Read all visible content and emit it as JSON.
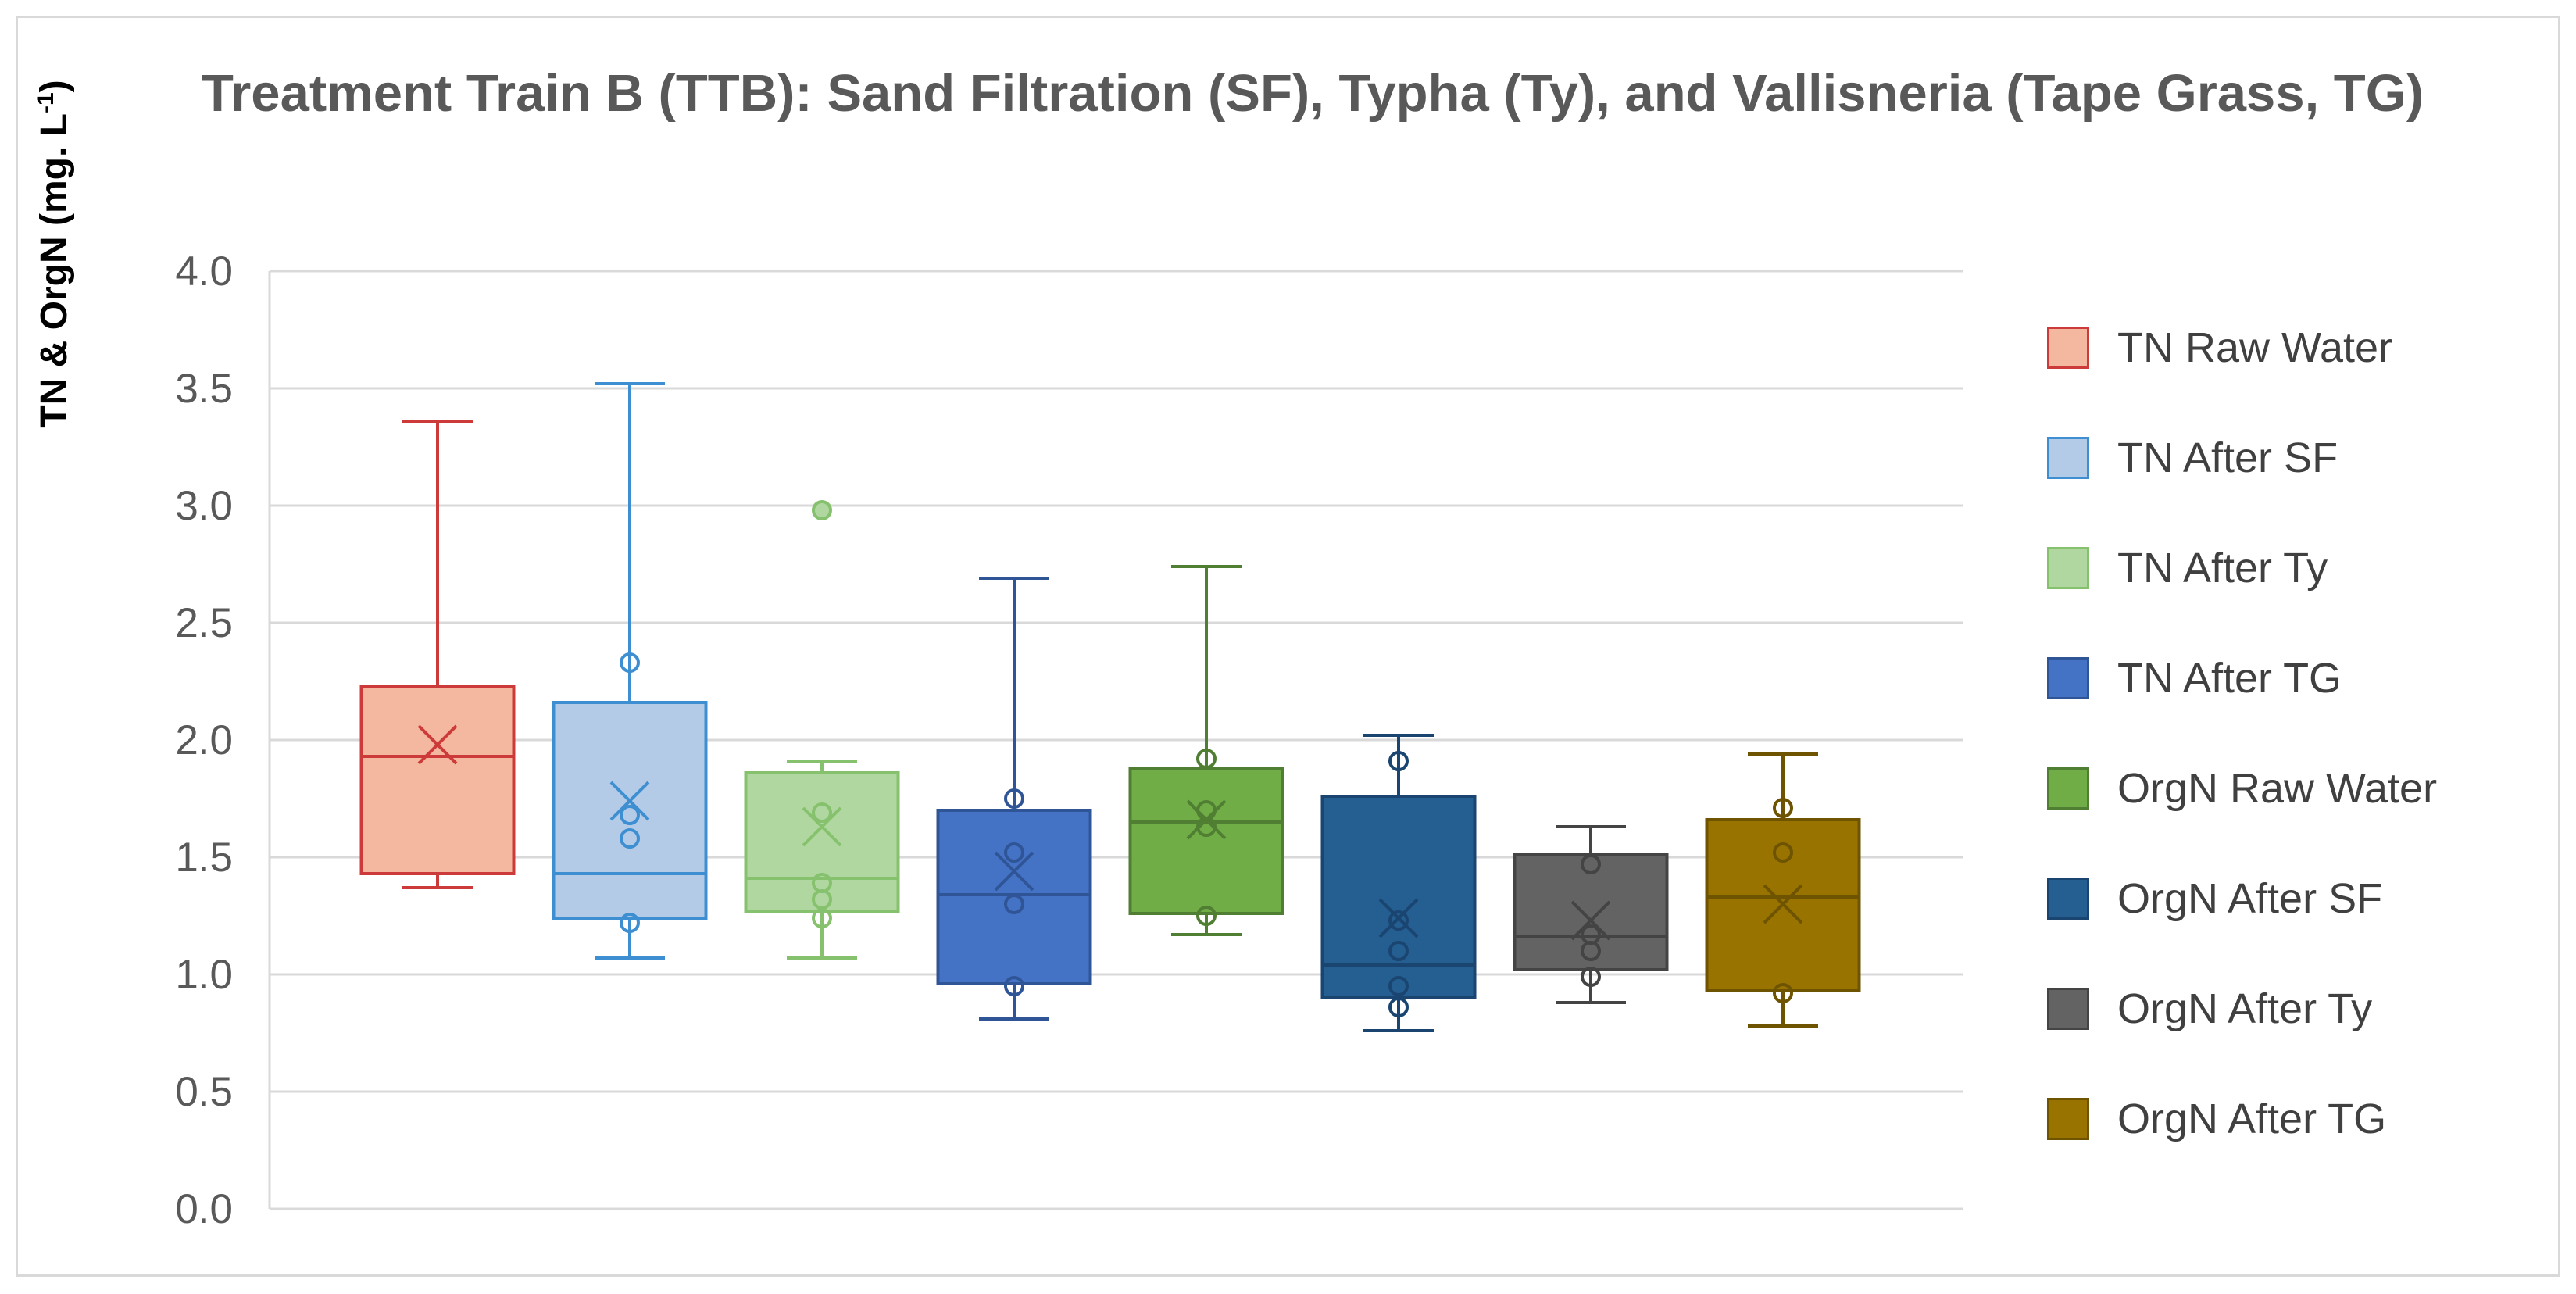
{
  "chart_data": {
    "type": "box",
    "title": "Treatment Train B (TTB): Sand Filtration (SF), Typha (Ty), and Vallisneria (Tape Grass, TG)",
    "xlabel": "",
    "ylabel": "TN & OrgN (mg. L",
    "ylabel_sup": "-1",
    "ylabel_end": ")",
    "ylim": [
      0,
      4.0
    ],
    "yticks": [
      "0.0",
      "0.5",
      "1.0",
      "1.5",
      "2.0",
      "2.5",
      "3.0",
      "3.5",
      "4.0"
    ],
    "grid": true,
    "legend_position": "right",
    "series": [
      {
        "name": "TN Raw Water",
        "fill": "#f4b79f",
        "stroke": "#cc3a3a",
        "min": 1.37,
        "q1": 1.43,
        "median": 1.93,
        "q3": 2.23,
        "max": 3.36,
        "mean": 1.98,
        "points": []
      },
      {
        "name": "TN After SF",
        "fill": "#b4cbe8",
        "stroke": "#3d8fd1",
        "min": 1.07,
        "q1": 1.24,
        "median": 1.43,
        "q3": 2.16,
        "max": 3.52,
        "mean": 1.74,
        "points": [
          2.33,
          1.68,
          1.58,
          1.22
        ]
      },
      {
        "name": "TN After Ty",
        "fill": "#b1d7a0",
        "stroke": "#86c16e",
        "min": 1.07,
        "q1": 1.27,
        "median": 1.41,
        "q3": 1.86,
        "max": 1.91,
        "mean": 1.63,
        "points": [
          2.98,
          1.69,
          1.39,
          1.32,
          1.24
        ]
      },
      {
        "name": "TN After TG",
        "fill": "#4472c4",
        "stroke": "#2f5597",
        "min": 0.81,
        "q1": 0.96,
        "median": 1.34,
        "q3": 1.7,
        "max": 2.69,
        "mean": 1.44,
        "points": [
          1.75,
          1.52,
          1.3,
          0.95
        ]
      },
      {
        "name": "OrgN Raw Water",
        "fill": "#70ad47",
        "stroke": "#507e32",
        "min": 1.17,
        "q1": 1.26,
        "median": 1.65,
        "q3": 1.88,
        "max": 2.74,
        "mean": 1.66,
        "points": [
          1.92,
          1.7,
          1.63,
          1.25
        ]
      },
      {
        "name": "OrgN After SF",
        "fill": "#255e91",
        "stroke": "#1b4571",
        "min": 0.76,
        "q1": 0.9,
        "median": 1.04,
        "q3": 1.76,
        "max": 2.02,
        "mean": 1.24,
        "points": [
          1.91,
          1.23,
          1.1,
          0.95,
          0.86
        ]
      },
      {
        "name": "OrgN After Ty",
        "fill": "#636363",
        "stroke": "#444444",
        "min": 0.88,
        "q1": 1.02,
        "median": 1.16,
        "q3": 1.51,
        "max": 1.63,
        "mean": 1.23,
        "points": [
          1.47,
          1.17,
          1.1,
          0.99
        ]
      },
      {
        "name": "OrgN After TG",
        "fill": "#997300",
        "stroke": "#6e5300",
        "min": 0.78,
        "q1": 0.93,
        "median": 1.33,
        "q3": 1.66,
        "max": 1.94,
        "mean": 1.3,
        "points": [
          1.71,
          1.52,
          0.92
        ]
      }
    ]
  }
}
